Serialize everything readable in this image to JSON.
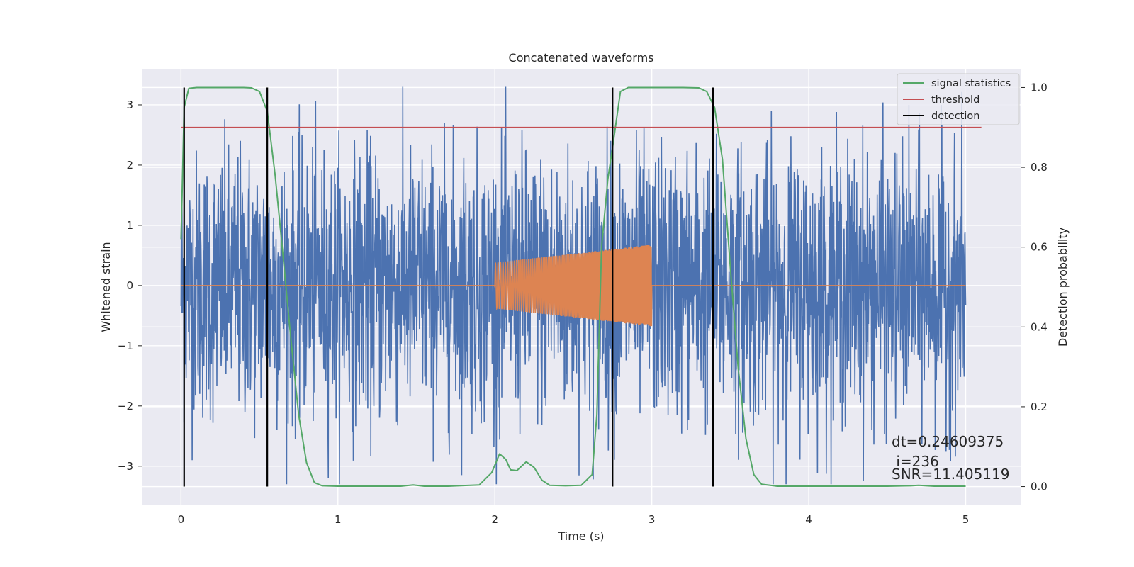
{
  "chart_data": {
    "type": "line",
    "title": "Concatenated waveforms",
    "xlabel": "Time (s)",
    "ylabel": "Whitened strain",
    "y2label": "Detection probability",
    "xlim": [
      -0.25,
      5.35
    ],
    "ylim": [
      -3.65,
      3.6
    ],
    "y2lim": [
      -0.047,
      1.047
    ],
    "xticks": [
      0,
      1,
      2,
      3,
      4,
      5
    ],
    "yticks": [
      -3,
      -2,
      -1,
      0,
      1,
      2,
      3
    ],
    "yticklabels": [
      "−3",
      "−2",
      "−1",
      "0",
      "1",
      "2",
      "3"
    ],
    "y2ticks": [
      0.0,
      0.2,
      0.4,
      0.6,
      0.8,
      1.0
    ],
    "y2ticklabels": [
      "0.0",
      "0.2",
      "0.4",
      "0.6",
      "0.8",
      "1.0"
    ],
    "grid": true,
    "legend_position": "top-right",
    "colors": {
      "strain": "#4c72b0",
      "injection": "#dd8452",
      "signal_statistics": "#55a868",
      "threshold": "#c44e52",
      "detection": "#000000",
      "background": "#eaeaf2"
    },
    "series": [
      {
        "name": "",
        "axis": "left",
        "kind": "whitened strain noise",
        "x_range": [
          0,
          5
        ],
        "typical_amplitude": 1.3,
        "peak_amplitude": 3.3
      },
      {
        "name": "",
        "axis": "left",
        "kind": "injected waveform",
        "x_range": [
          2,
          3
        ],
        "amplitude_start": 0.38,
        "amplitude_end": 0.68
      },
      {
        "name": "signal statistics",
        "axis": "right",
        "x": [
          0.0,
          0.02,
          0.05,
          0.1,
          0.2,
          0.3,
          0.4,
          0.45,
          0.5,
          0.55,
          0.6,
          0.65,
          0.7,
          0.75,
          0.8,
          0.85,
          0.9,
          1.0,
          1.2,
          1.4,
          1.48,
          1.55,
          1.7,
          1.9,
          1.98,
          2.03,
          2.07,
          2.1,
          2.14,
          2.2,
          2.25,
          2.3,
          2.35,
          2.45,
          2.55,
          2.62,
          2.65,
          2.68,
          2.72,
          2.75,
          2.8,
          2.85,
          2.9,
          3.0,
          3.2,
          3.3,
          3.35,
          3.4,
          3.45,
          3.5,
          3.55,
          3.6,
          3.65,
          3.7,
          3.8,
          4.0,
          4.5,
          4.65,
          4.7,
          4.8,
          5.0
        ],
        "y": [
          0.62,
          0.95,
          0.998,
          1.0,
          1.0,
          1.0,
          1.0,
          0.999,
          0.99,
          0.94,
          0.78,
          0.58,
          0.37,
          0.18,
          0.06,
          0.01,
          0.002,
          0.001,
          0.001,
          0.001,
          0.004,
          0.001,
          0.001,
          0.004,
          0.035,
          0.082,
          0.068,
          0.042,
          0.04,
          0.062,
          0.048,
          0.016,
          0.003,
          0.002,
          0.003,
          0.03,
          0.18,
          0.6,
          0.77,
          0.85,
          0.99,
          1.0,
          1.0,
          1.0,
          1.0,
          0.999,
          0.99,
          0.95,
          0.82,
          0.55,
          0.3,
          0.12,
          0.03,
          0.006,
          0.001,
          0.001,
          0.001,
          0.002,
          0.003,
          0.001,
          0.001
        ]
      },
      {
        "name": "threshold",
        "axis": "right",
        "x": [
          0.0,
          5.1
        ],
        "y": [
          0.9,
          0.9
        ]
      },
      {
        "name": "detection",
        "axis": "right",
        "x_positions": [
          0.02,
          0.55,
          2.75,
          3.39
        ],
        "y_range": [
          0.0,
          1.0
        ]
      }
    ],
    "annotations": [
      "dt=0.24609375",
      " i=236",
      "SNR=11.405119"
    ],
    "legend": [
      "signal statistics",
      "threshold",
      "detection"
    ]
  }
}
